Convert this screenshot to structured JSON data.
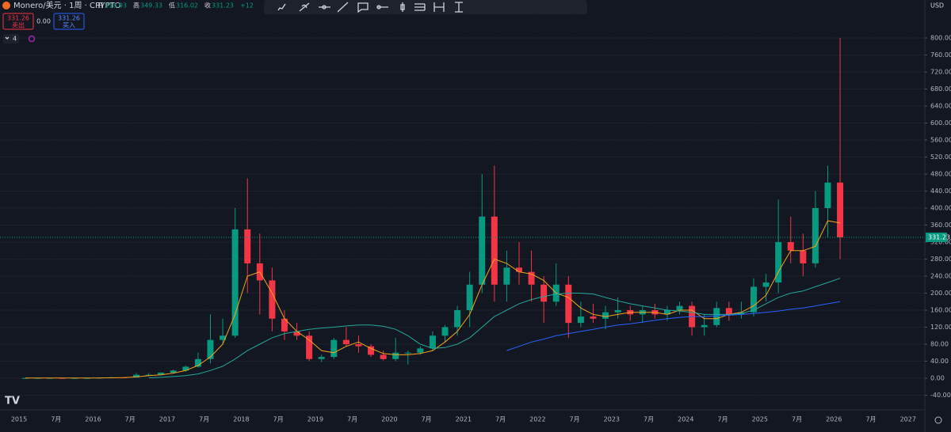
{
  "header": {
    "symbol": "Monero/美元 · 1周 · CRYPTO",
    "open_label": "开",
    "open": 318.93,
    "high_label": "高",
    "high": 349.33,
    "low_label": "低",
    "low": 316.02,
    "close_label": "收",
    "close": 331.23,
    "change": "+12",
    "sell_price": 331.26,
    "sell_label": "卖出",
    "spread": "0.00",
    "buy_price": 331.26,
    "buy_label": "买入",
    "indicator_count": 4,
    "currency": "USD"
  },
  "chart_data": {
    "type": "candlestick",
    "title": "Monero/美元 · 1周 · CRYPTO",
    "x": [
      "2015-01",
      "2015-03",
      "2015-05",
      "2015-07",
      "2015-09",
      "2015-11",
      "2016-01",
      "2016-03",
      "2016-05",
      "2016-07",
      "2016-09",
      "2016-11",
      "2017-01",
      "2017-03",
      "2017-05",
      "2017-07",
      "2017-09",
      "2017-11",
      "2018-01",
      "2018-03",
      "2018-05",
      "2018-07",
      "2018-09",
      "2018-11",
      "2019-01",
      "2019-03",
      "2019-05",
      "2019-07",
      "2019-09",
      "2019-11",
      "2020-01",
      "2020-03",
      "2020-05",
      "2020-07",
      "2020-09",
      "2020-11",
      "2021-01",
      "2021-03",
      "2021-05",
      "2021-07",
      "2021-09",
      "2021-11",
      "2022-01",
      "2022-03",
      "2022-05",
      "2022-07",
      "2022-09",
      "2022-11",
      "2023-01",
      "2023-03",
      "2023-05",
      "2023-07",
      "2023-09",
      "2023-11",
      "2024-01",
      "2024-03",
      "2024-05",
      "2024-07",
      "2024-09",
      "2024-11",
      "2025-01",
      "2025-03",
      "2025-05",
      "2025-07",
      "2025-09",
      "2025-11",
      "2026-01"
    ],
    "open": [
      0.4,
      0.5,
      0.6,
      0.6,
      0.5,
      0.5,
      0.5,
      1.3,
      2,
      1.6,
      8,
      8,
      13,
      18,
      27,
      45,
      90,
      100,
      350,
      270,
      230,
      140,
      110,
      100,
      45,
      50,
      90,
      80,
      75,
      55,
      45,
      60,
      60,
      70,
      100,
      120,
      160,
      220,
      380,
      220,
      260,
      250,
      220,
      180,
      220,
      130,
      145,
      140,
      155,
      160,
      150,
      160,
      150,
      160,
      170,
      120,
      125,
      165,
      150,
      155,
      215,
      225,
      320,
      300,
      270,
      400,
      460
    ],
    "high": [
      0.6,
      0.8,
      0.8,
      0.7,
      0.6,
      0.6,
      1.5,
      2.8,
      2.5,
      12,
      12,
      14,
      20,
      30,
      60,
      150,
      140,
      400,
      470,
      340,
      260,
      160,
      130,
      110,
      55,
      95,
      120,
      100,
      80,
      65,
      95,
      65,
      75,
      110,
      125,
      170,
      250,
      480,
      500,
      300,
      320,
      300,
      240,
      270,
      240,
      180,
      175,
      170,
      190,
      170,
      170,
      175,
      170,
      180,
      180,
      150,
      180,
      180,
      180,
      235,
      245,
      420,
      380,
      340,
      440,
      500,
      800
    ],
    "low": [
      0.3,
      0.4,
      0.5,
      0.4,
      0.4,
      0.4,
      0.4,
      1.2,
      1.3,
      1.5,
      5,
      7,
      11,
      15,
      25,
      35,
      80,
      95,
      200,
      150,
      110,
      90,
      90,
      40,
      38,
      45,
      75,
      60,
      50,
      42,
      40,
      32,
      55,
      65,
      85,
      100,
      120,
      200,
      180,
      180,
      220,
      180,
      130,
      170,
      95,
      120,
      130,
      115,
      140,
      135,
      130,
      140,
      135,
      150,
      100,
      100,
      120,
      135,
      140,
      145,
      180,
      200,
      270,
      240,
      260,
      330,
      280
    ],
    "close": [
      0.5,
      0.6,
      0.6,
      0.5,
      0.5,
      0.5,
      1.3,
      2,
      1.6,
      8,
      8,
      13,
      18,
      27,
      45,
      90,
      100,
      350,
      270,
      230,
      140,
      110,
      100,
      45,
      50,
      90,
      80,
      75,
      55,
      45,
      60,
      60,
      70,
      100,
      120,
      160,
      220,
      380,
      220,
      260,
      250,
      220,
      180,
      220,
      130,
      145,
      140,
      155,
      160,
      150,
      160,
      150,
      160,
      170,
      120,
      125,
      165,
      150,
      155,
      215,
      225,
      320,
      300,
      270,
      400,
      460,
      331.23
    ],
    "up_color": "#089981",
    "down_color": "#f23645",
    "lines": [
      {
        "color": "#f7a21b",
        "values": [
          0.5,
          0.5,
          0.5,
          0.6,
          0.5,
          0.5,
          0.6,
          1,
          1.5,
          3,
          6,
          8,
          12,
          18,
          30,
          50,
          80,
          150,
          240,
          250,
          200,
          140,
          110,
          90,
          65,
          60,
          75,
          85,
          70,
          58,
          55,
          55,
          58,
          65,
          85,
          110,
          150,
          220,
          280,
          270,
          250,
          245,
          230,
          200,
          190,
          165,
          150,
          145,
          150,
          155,
          155,
          155,
          150,
          160,
          160,
          140,
          140,
          150,
          155,
          170,
          195,
          250,
          300,
          300,
          310,
          370,
          365
        ]
      },
      {
        "color": "#26a69a",
        "values": [
          null,
          null,
          null,
          null,
          null,
          null,
          null,
          null,
          null,
          null,
          1,
          2,
          4,
          6,
          10,
          18,
          28,
          45,
          65,
          80,
          95,
          105,
          110,
          115,
          118,
          120,
          123,
          125,
          125,
          122,
          115,
          100,
          80,
          70,
          72,
          80,
          95,
          120,
          145,
          160,
          175,
          185,
          192,
          198,
          200,
          200,
          198,
          190,
          182,
          175,
          170,
          165,
          160,
          158,
          155,
          150,
          150,
          150,
          152,
          160,
          175,
          190,
          200,
          205,
          215,
          225,
          235
        ]
      },
      {
        "color": "#2962ff",
        "values": [
          null,
          null,
          null,
          null,
          null,
          null,
          null,
          null,
          null,
          null,
          null,
          null,
          null,
          null,
          null,
          null,
          null,
          null,
          null,
          null,
          null,
          null,
          null,
          null,
          null,
          null,
          null,
          null,
          null,
          null,
          null,
          null,
          null,
          null,
          null,
          null,
          null,
          null,
          null,
          65,
          75,
          85,
          92,
          100,
          105,
          110,
          115,
          120,
          125,
          128,
          132,
          136,
          140,
          143,
          145,
          145,
          147,
          148,
          150,
          152,
          155,
          158,
          162,
          165,
          170,
          175,
          180
        ]
      }
    ],
    "ylim": [
      -60,
      830
    ],
    "yticks": [
      {
        "value": -40,
        "label": "-40.00"
      },
      {
        "value": 0,
        "label": "0.00"
      },
      {
        "value": 40,
        "label": "40.00"
      },
      {
        "value": 80,
        "label": "80.00"
      },
      {
        "value": 120,
        "label": "120.00"
      },
      {
        "value": 160,
        "label": "160.00"
      },
      {
        "value": 200,
        "label": "200.00"
      },
      {
        "value": 240,
        "label": "240.00"
      },
      {
        "value": 280,
        "label": "280.00"
      },
      {
        "value": 320,
        "label": "320.00"
      },
      {
        "value": 360,
        "label": "360.00"
      },
      {
        "value": 400,
        "label": "400.00"
      },
      {
        "value": 440,
        "label": "440.00"
      },
      {
        "value": 480,
        "label": "480.00"
      },
      {
        "value": 520,
        "label": "520.00"
      },
      {
        "value": 560,
        "label": "560.00"
      },
      {
        "value": 600,
        "label": "600.00"
      },
      {
        "value": 640,
        "label": "640.00"
      },
      {
        "value": 680,
        "label": "680.00"
      },
      {
        "value": 720,
        "label": "720.00"
      },
      {
        "value": 760,
        "label": "760.00"
      },
      {
        "value": 800,
        "label": "800.00"
      }
    ],
    "xticks": [
      {
        "value": "2015-01",
        "label": "2015"
      },
      {
        "value": "2015-07",
        "label": "7月"
      },
      {
        "value": "2016-01",
        "label": "2016"
      },
      {
        "value": "2016-07",
        "label": "7月"
      },
      {
        "value": "2017-01",
        "label": "2017"
      },
      {
        "value": "2017-07",
        "label": "7月"
      },
      {
        "value": "2018-01",
        "label": "2018"
      },
      {
        "value": "2018-07",
        "label": "7月"
      },
      {
        "value": "2019-01",
        "label": "2019"
      },
      {
        "value": "2019-07",
        "label": "7月"
      },
      {
        "value": "2020-01",
        "label": "2020"
      },
      {
        "value": "2020-07",
        "label": "7月"
      },
      {
        "value": "2021-01",
        "label": "2021"
      },
      {
        "value": "2021-07",
        "label": "7月"
      },
      {
        "value": "2022-01",
        "label": "2022"
      },
      {
        "value": "2022-07",
        "label": "7月"
      },
      {
        "value": "2023-01",
        "label": "2023"
      },
      {
        "value": "2023-07",
        "label": "7月"
      },
      {
        "value": "2024-01",
        "label": "2024"
      },
      {
        "value": "2024-07",
        "label": "7月"
      },
      {
        "value": "2025-01",
        "label": "2025"
      },
      {
        "value": "2025-07",
        "label": "7月"
      },
      {
        "value": "2026-01",
        "label": "2026"
      },
      {
        "value": "2026-07",
        "label": "7月"
      },
      {
        "value": "2027-01",
        "label": "2027"
      }
    ],
    "grid": true
  }
}
